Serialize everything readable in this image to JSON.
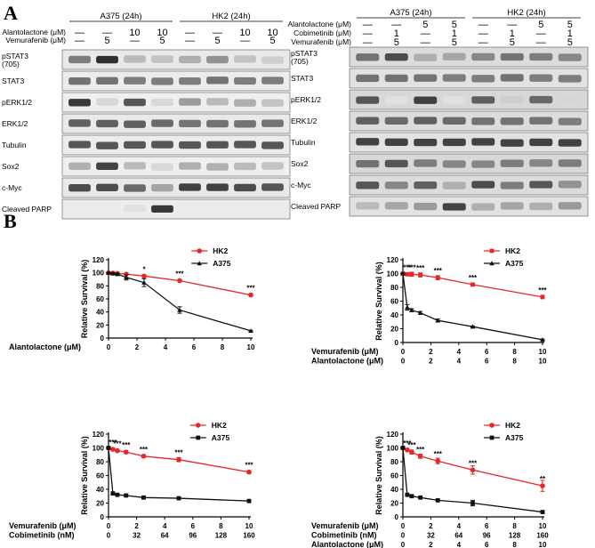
{
  "figure": {
    "panel_a_letter": "A",
    "panel_b_letter": "B"
  },
  "blot_left": {
    "groups": [
      "A375 (24h)",
      "HK2 (24h)"
    ],
    "treatments": [
      {
        "label": "Alantolactone (μM)",
        "values": [
          "—",
          "—",
          "10",
          "10",
          "—",
          "—",
          "10",
          "10"
        ]
      },
      {
        "label": "Vemurafenib (μM)",
        "values": [
          "—",
          "5",
          "—",
          "5",
          "—",
          "5",
          "—",
          "5"
        ]
      }
    ],
    "rows": [
      "pSTAT3|(705)",
      "STAT3",
      "pERK1/2",
      "ERK1/2",
      "Tubulin",
      "Sox2",
      "c-Myc",
      "Cleaved PARP"
    ]
  },
  "blot_right": {
    "groups": [
      "A375 (24h)",
      "HK2 (24h)"
    ],
    "treatments": [
      {
        "label": "Alantolactone (μM)",
        "values": [
          "—",
          "—",
          "5",
          "5",
          "—",
          "—",
          "5",
          "5"
        ]
      },
      {
        "label": "Cobimetinib (μM)",
        "values": [
          "—",
          "1",
          "—",
          "1",
          "—",
          "1",
          "—",
          "1"
        ]
      },
      {
        "label": "Vemurafenib (μM)",
        "values": [
          "—",
          "5",
          "—",
          "5",
          "—",
          "5",
          "—",
          "5"
        ]
      }
    ],
    "rows": [
      "pSTAT3|(705)",
      "STAT3",
      "pERK1/2",
      "ERK1/2",
      "Tubulin",
      "Sox2",
      "c-Myc",
      "Cleaved PARP"
    ]
  },
  "colors": {
    "hk2": "#e8262a",
    "a375": "#111111"
  },
  "chart_data": [
    {
      "type": "line",
      "ylabel": "Relative Survival (%)",
      "ylim": [
        0,
        120
      ],
      "yticks": [
        0,
        20,
        40,
        60,
        80,
        100,
        120
      ],
      "xlim": [
        0,
        10
      ],
      "xtick_rows": [
        {
          "label": "Alantolactone (μM)",
          "ticks": [
            "0",
            "2",
            "4",
            "6",
            "8",
            "10"
          ]
        }
      ],
      "legend": [
        "HK2",
        "A375"
      ],
      "marker_a375": "triangle",
      "series": [
        {
          "name": "HK2",
          "x": [
            0,
            0.31,
            0.63,
            1.25,
            2.5,
            5,
            10
          ],
          "y": [
            100,
            99.5,
            99,
            98,
            95,
            88,
            66
          ],
          "err": [
            1,
            1,
            1,
            1.5,
            2,
            1.5,
            1.5
          ]
        },
        {
          "name": "A375",
          "x": [
            0,
            0.31,
            0.63,
            1.25,
            2.5,
            5,
            10
          ],
          "y": [
            100,
            99,
            98,
            93,
            85,
            43,
            11
          ],
          "err": [
            1,
            1,
            1.5,
            4,
            6,
            5,
            1
          ]
        }
      ],
      "stars": [
        {
          "x": 2.5,
          "y": 95,
          "t": "*"
        },
        {
          "x": 5,
          "y": 88,
          "t": "***"
        },
        {
          "x": 10,
          "y": 66,
          "t": "***"
        }
      ]
    },
    {
      "type": "line",
      "ylabel": "Relative Survival (%)",
      "ylim": [
        0,
        120
      ],
      "yticks": [
        0,
        20,
        40,
        60,
        80,
        100,
        120
      ],
      "xlim": [
        0,
        10
      ],
      "xtick_rows": [
        {
          "label": "Vemurafenib (μM)",
          "ticks": [
            "0",
            "2",
            "4",
            "6",
            "8",
            "10"
          ]
        },
        {
          "label": "Alantolactone (μM)",
          "ticks": [
            "0",
            "2",
            "4",
            "6",
            "8",
            "10"
          ]
        }
      ],
      "legend": [
        "HK2",
        "A375"
      ],
      "marker_hk2": "square",
      "marker_a375": "triangle",
      "series": [
        {
          "name": "HK2",
          "x": [
            0,
            0.31,
            0.63,
            1.25,
            2.5,
            5,
            10
          ],
          "y": [
            100,
            99,
            99,
            98,
            94,
            84,
            66
          ],
          "err": [
            1,
            2,
            3,
            3,
            3,
            2,
            2.5
          ]
        },
        {
          "name": "A375",
          "x": [
            0,
            0.31,
            0.63,
            1.25,
            2.5,
            5,
            10
          ],
          "y": [
            100,
            51,
            47,
            43,
            32,
            23,
            4
          ],
          "err": [
            1,
            4,
            2,
            2,
            2,
            1,
            1
          ]
        }
      ],
      "stars": [
        {
          "x": 0.31,
          "y": 99,
          "t": "***"
        },
        {
          "x": 0.63,
          "y": 99,
          "t": "***"
        },
        {
          "x": 1.25,
          "y": 98,
          "t": "***"
        },
        {
          "x": 2.5,
          "y": 94,
          "t": "***"
        },
        {
          "x": 5,
          "y": 84,
          "t": "***"
        },
        {
          "x": 10,
          "y": 66,
          "t": "***"
        }
      ]
    },
    {
      "type": "line",
      "ylabel": "Relative Survival (%)",
      "ylim": [
        0,
        120
      ],
      "yticks": [
        0,
        20,
        40,
        60,
        80,
        100,
        120
      ],
      "xlim": [
        0,
        10
      ],
      "xtick_rows": [
        {
          "label": "Vemurafenib (μM)",
          "ticks": [
            "0",
            "2",
            "4",
            "6",
            "8",
            "10"
          ]
        },
        {
          "label": "Cobimetinib (nM)",
          "ticks": [
            "0",
            "32",
            "64",
            "96",
            "128",
            "160"
          ]
        }
      ],
      "legend": [
        "HK2",
        "A375"
      ],
      "marker_a375": "square",
      "series": [
        {
          "name": "HK2",
          "x": [
            0,
            0.31,
            0.63,
            1.25,
            2.5,
            5,
            10
          ],
          "y": [
            100,
            98,
            96,
            94,
            88,
            83,
            65
          ],
          "err": [
            1,
            2,
            2,
            2,
            2,
            3,
            2
          ]
        },
        {
          "name": "A375",
          "x": [
            0,
            0.31,
            0.63,
            1.25,
            2.5,
            5,
            10
          ],
          "y": [
            100,
            34,
            32,
            31,
            28,
            27,
            23
          ],
          "err": [
            1,
            2,
            1,
            2,
            1,
            1,
            1
          ]
        }
      ],
      "stars": [
        {
          "x": 0.31,
          "y": 98,
          "t": "***"
        },
        {
          "x": 0.63,
          "y": 96,
          "t": "***"
        },
        {
          "x": 1.25,
          "y": 94,
          "t": "***"
        },
        {
          "x": 2.5,
          "y": 88,
          "t": "***"
        },
        {
          "x": 5,
          "y": 83,
          "t": "***"
        },
        {
          "x": 10,
          "y": 65,
          "t": "***"
        }
      ]
    },
    {
      "type": "line",
      "ylabel": "Relative Survival (%)",
      "ylim": [
        0,
        120
      ],
      "yticks": [
        0,
        20,
        40,
        60,
        80,
        100,
        120
      ],
      "xlim": [
        0,
        10
      ],
      "xtick_rows": [
        {
          "label": "Vemurafenib (μM)",
          "ticks": [
            "0",
            "2",
            "4",
            "6",
            "8",
            "10"
          ]
        },
        {
          "label": "Cobimetinib (nM)",
          "ticks": [
            "0",
            "32",
            "64",
            "96",
            "128",
            "160"
          ]
        },
        {
          "label": "Alantolactone (μM)",
          "ticks": [
            "0",
            "2",
            "4",
            "6",
            "8",
            "10"
          ]
        }
      ],
      "legend": [
        "HK2",
        "A375"
      ],
      "marker_a375": "square",
      "series": [
        {
          "name": "HK2",
          "x": [
            0,
            0.31,
            0.63,
            1.25,
            2.5,
            5,
            10
          ],
          "y": [
            100,
            97,
            94,
            88,
            81,
            68,
            45
          ],
          "err": [
            1,
            2,
            3,
            3,
            4,
            6,
            8
          ]
        },
        {
          "name": "A375",
          "x": [
            0,
            0.31,
            0.63,
            1.25,
            2.5,
            5,
            10
          ],
          "y": [
            100,
            32,
            30,
            28,
            24,
            20,
            7
          ],
          "err": [
            1,
            2,
            1,
            1,
            1,
            4,
            1
          ]
        }
      ],
      "stars": [
        {
          "x": 0.31,
          "y": 97,
          "t": "***"
        },
        {
          "x": 0.63,
          "y": 94,
          "t": "***"
        },
        {
          "x": 1.25,
          "y": 88,
          "t": "***"
        },
        {
          "x": 2.5,
          "y": 81,
          "t": "***"
        },
        {
          "x": 5,
          "y": 68,
          "t": "***"
        },
        {
          "x": 10,
          "y": 45,
          "t": "**"
        }
      ]
    }
  ]
}
